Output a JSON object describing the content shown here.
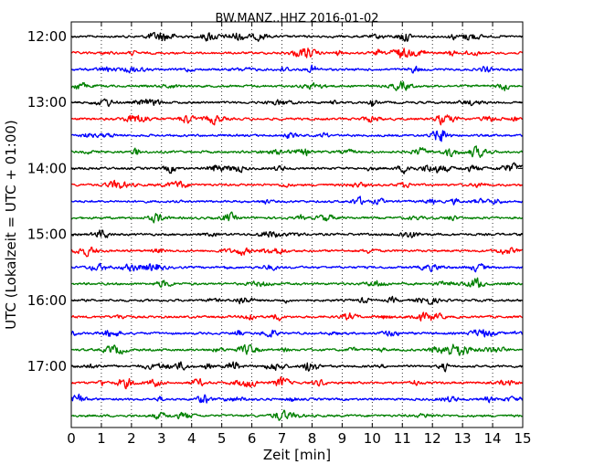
{
  "chart_data": {
    "type": "line",
    "title": "BW.MANZ..HHZ 2016-01-02",
    "xlabel": "Zeit  [min]",
    "ylabel": "UTC (Lokalzeit = UTC + 01:00)",
    "xlim": [
      0,
      15
    ],
    "x_ticks": [
      0,
      1,
      2,
      3,
      4,
      5,
      6,
      7,
      8,
      9,
      10,
      11,
      12,
      13,
      14,
      15
    ],
    "x_tick_labels": [
      "0",
      "1",
      "2",
      "3",
      "4",
      "5",
      "6",
      "7",
      "8",
      "9",
      "10",
      "11",
      "12",
      "13",
      "14",
      "15"
    ],
    "y_tick_labels": [
      "12:00",
      "13:00",
      "14:00",
      "15:00",
      "16:00",
      "17:00"
    ],
    "y_tick_rows": [
      0,
      4,
      8,
      12,
      16,
      20
    ],
    "grid": "vertical dotted",
    "trace_colors": [
      "#000000",
      "#ff0000",
      "#0000ff",
      "#008000"
    ],
    "traces": [
      {
        "start": "12:00",
        "color": "#000000"
      },
      {
        "start": "12:15",
        "color": "#ff0000"
      },
      {
        "start": "12:30",
        "color": "#0000ff"
      },
      {
        "start": "12:45",
        "color": "#008000"
      },
      {
        "start": "13:00",
        "color": "#000000"
      },
      {
        "start": "13:15",
        "color": "#ff0000"
      },
      {
        "start": "13:30",
        "color": "#0000ff"
      },
      {
        "start": "13:45",
        "color": "#008000"
      },
      {
        "start": "14:00",
        "color": "#000000"
      },
      {
        "start": "14:15",
        "color": "#ff0000"
      },
      {
        "start": "14:30",
        "color": "#0000ff"
      },
      {
        "start": "14:45",
        "color": "#008000"
      },
      {
        "start": "15:00",
        "color": "#000000"
      },
      {
        "start": "15:15",
        "color": "#ff0000"
      },
      {
        "start": "15:30",
        "color": "#0000ff"
      },
      {
        "start": "15:45",
        "color": "#008000"
      },
      {
        "start": "16:00",
        "color": "#000000"
      },
      {
        "start": "16:15",
        "color": "#ff0000"
      },
      {
        "start": "16:30",
        "color": "#0000ff"
      },
      {
        "start": "16:45",
        "color": "#008000"
      },
      {
        "start": "17:00",
        "color": "#000000"
      },
      {
        "start": "17:15",
        "color": "#ff0000"
      },
      {
        "start": "17:30",
        "color": "#0000ff"
      },
      {
        "start": "17:45",
        "color": "#008000"
      }
    ]
  }
}
